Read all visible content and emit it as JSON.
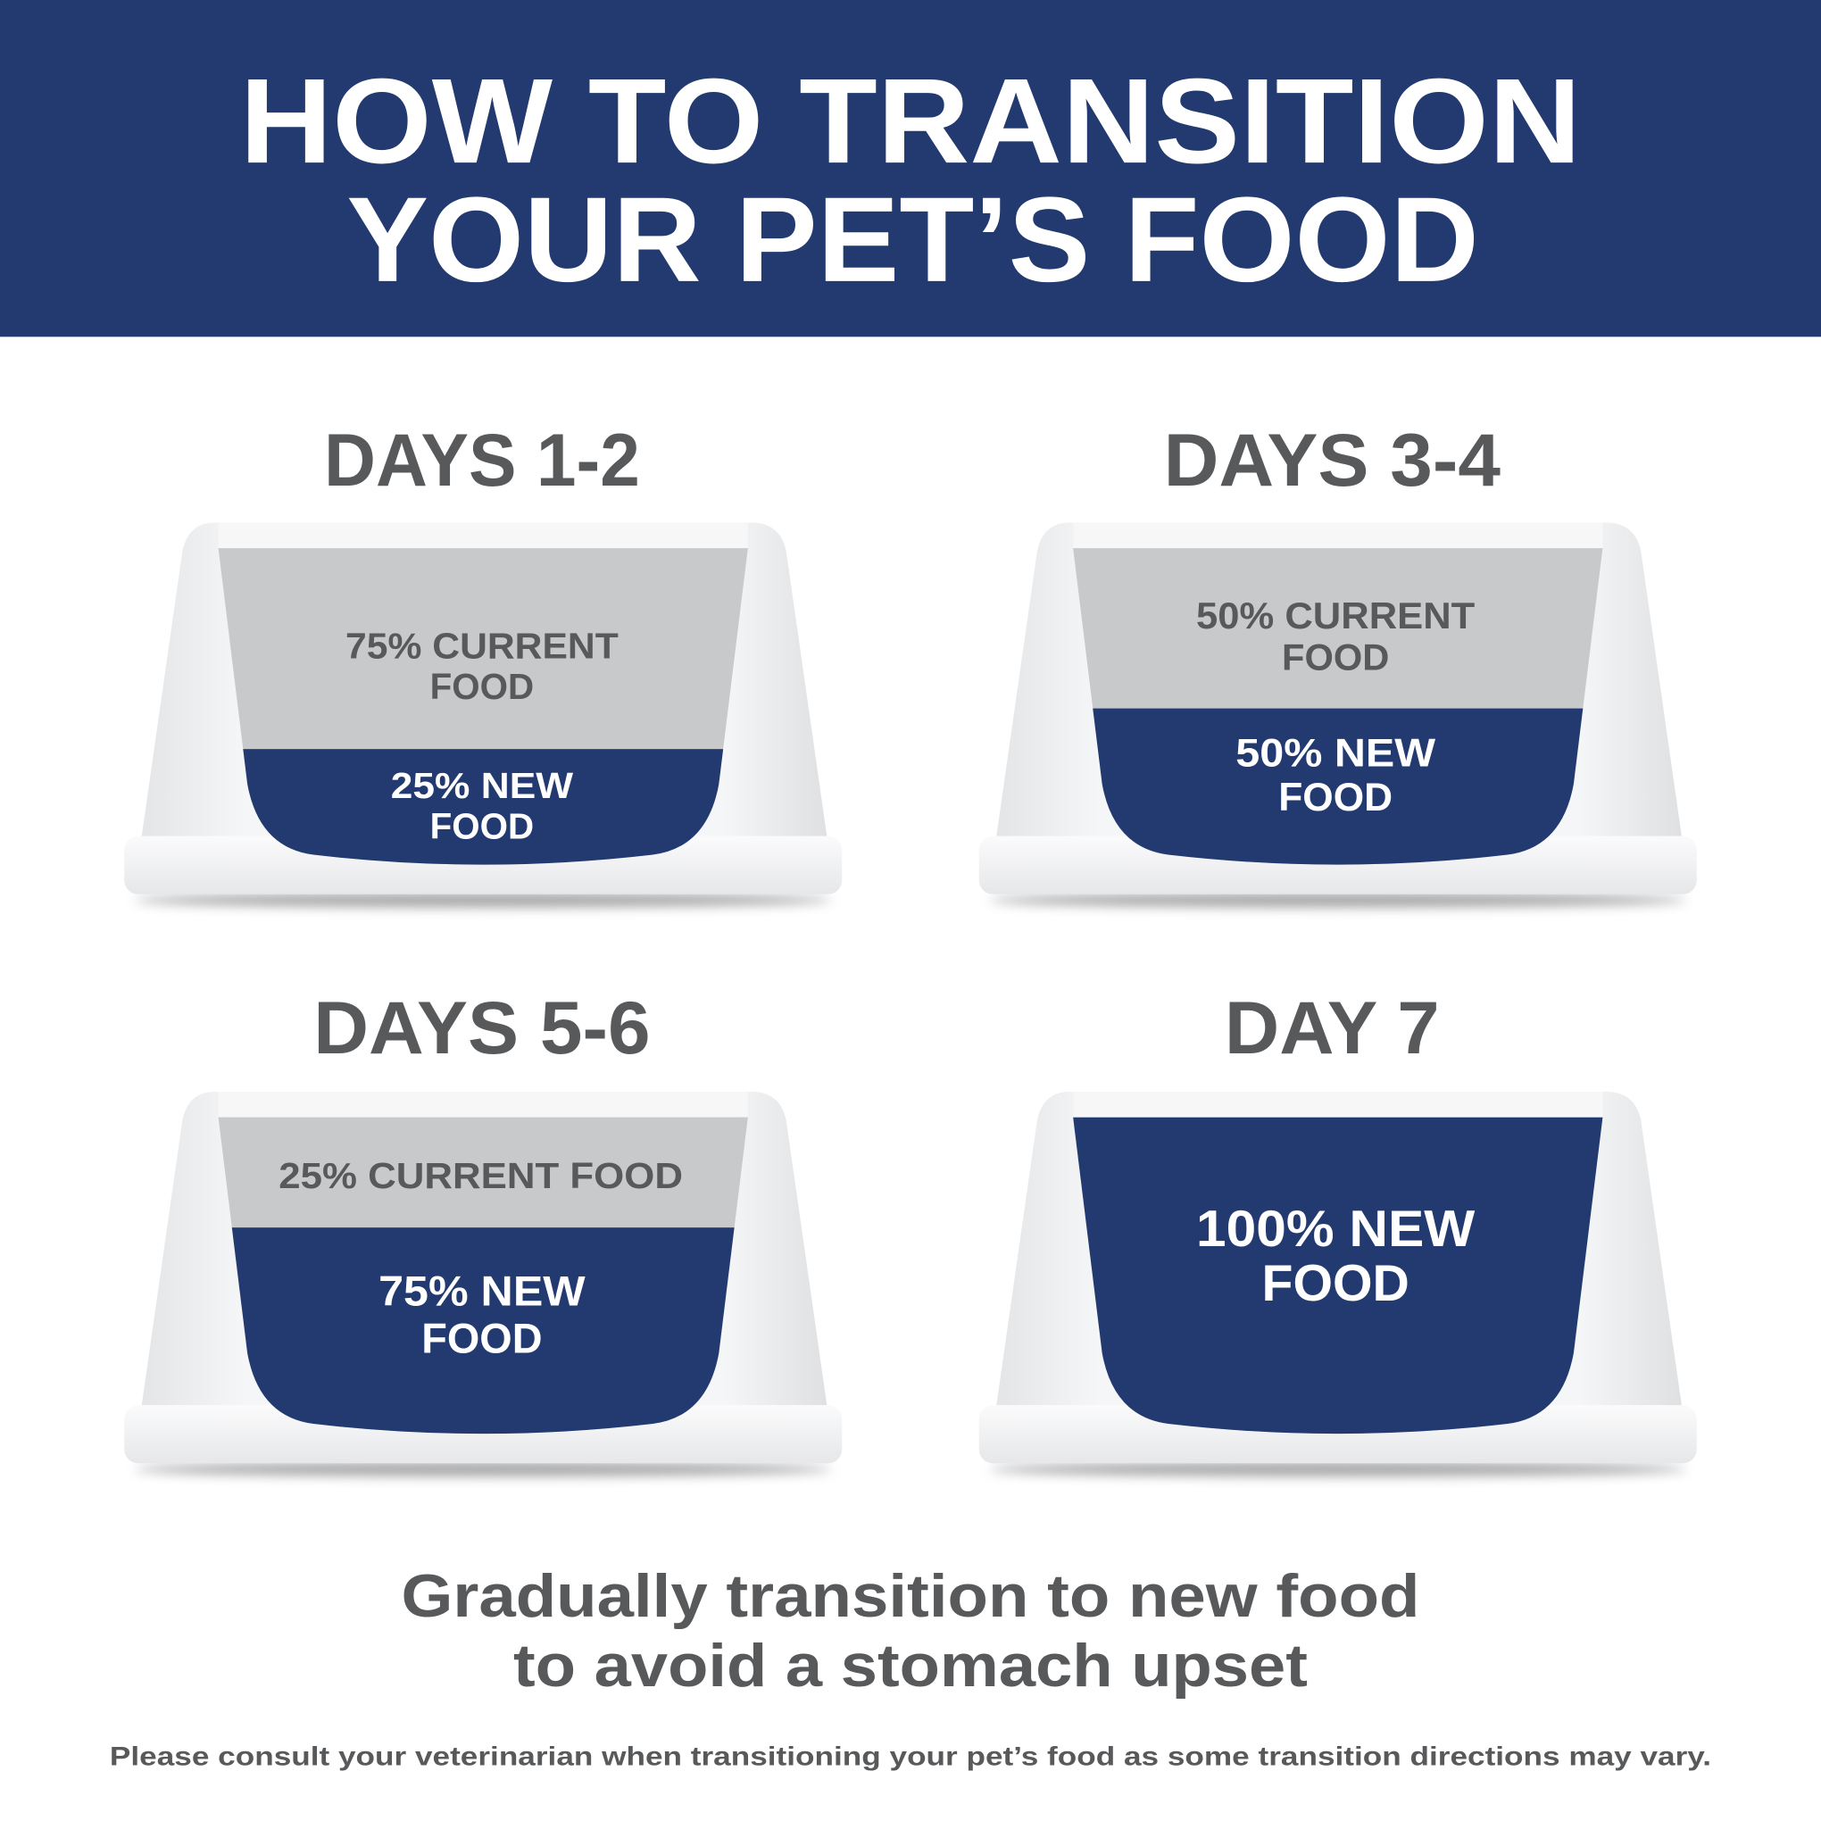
{
  "header": {
    "title_line1": "HOW TO TRANSITION",
    "title_line2": "YOUR PET’S FOOD"
  },
  "colors": {
    "navy": "#223a70",
    "current_food_gray": "#c8c9cb",
    "text_gray": "#58595b",
    "white": "#ffffff"
  },
  "steps": [
    {
      "label": "DAYS 1-2",
      "current_text": [
        "75% CURRENT",
        "FOOD"
      ],
      "new_text": [
        "25% NEW",
        "FOOD"
      ],
      "new_food_percent": 25
    },
    {
      "label": "DAYS 3-4",
      "current_text": [
        "50% CURRENT",
        "FOOD"
      ],
      "new_text": [
        "50% NEW",
        "FOOD"
      ],
      "new_food_percent": 50
    },
    {
      "label": "DAYS 5-6",
      "current_text": [
        "25% CURRENT FOOD"
      ],
      "new_text": [
        "75% NEW",
        "FOOD"
      ],
      "new_food_percent": 75
    },
    {
      "label": "DAY 7",
      "current_text": [],
      "new_text": [
        "100% NEW",
        "FOOD"
      ],
      "new_food_percent": 100
    }
  ],
  "tagline": {
    "line1": "Gradually transition to new food",
    "line2": "to avoid a stomach upset"
  },
  "disclaimer": "Please consult your veterinarian when transitioning your pet’s food as some transition directions may vary."
}
